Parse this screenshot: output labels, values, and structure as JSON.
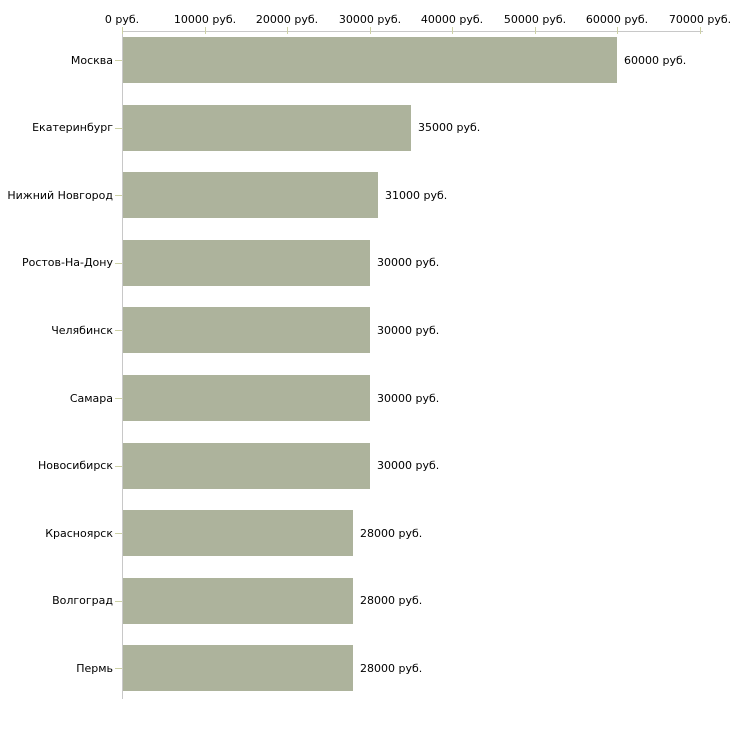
{
  "chart_data": {
    "type": "bar",
    "orientation": "horizontal",
    "title": "",
    "unit": "руб.",
    "categories": [
      "Москва",
      "Екатеринбург",
      "Нижний Новгород",
      "Ростов-На-Дону",
      "Челябинск",
      "Самара",
      "Новосибирск",
      "Красноярск",
      "Волгоград",
      "Пермь"
    ],
    "values": [
      60000,
      35000,
      31000,
      30000,
      30000,
      30000,
      30000,
      28000,
      28000,
      28000
    ],
    "value_labels": [
      "60000 руб.",
      "35000 руб.",
      "31000 руб.",
      "30000 руб.",
      "30000 руб.",
      "30000 руб.",
      "30000 руб.",
      "28000 руб.",
      "28000 руб.",
      "28000 руб."
    ],
    "x_axis": {
      "position": "top",
      "min": 0,
      "max": 70000,
      "ticks": [
        0,
        10000,
        20000,
        30000,
        40000,
        50000,
        60000,
        70000
      ],
      "tick_labels": [
        "0 руб.",
        "10000 руб.",
        "20000 руб.",
        "30000 руб.",
        "40000 руб.",
        "50000 руб.",
        "60000 руб.",
        "70000 руб."
      ]
    },
    "grid": false,
    "legend": false,
    "colors": {
      "bar": "#adb39c",
      "axis_line": "#c8c8c8",
      "tick": "#cdd1a5",
      "text": "#000000",
      "background": "#ffffff"
    }
  }
}
